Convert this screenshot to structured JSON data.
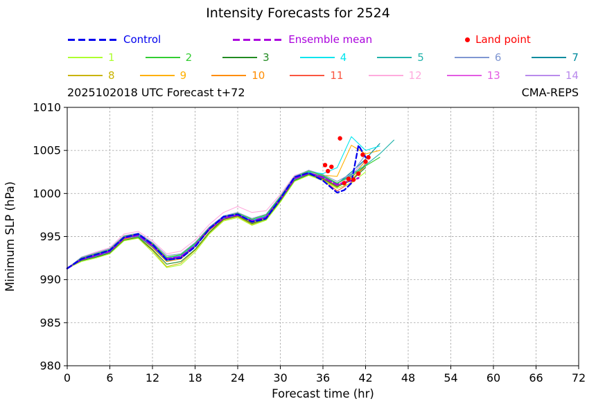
{
  "title": "Intensity Forecasts for 2524",
  "annotation_left": "2025102018 UTC Forecast t+72",
  "annotation_right": "CMA-REPS",
  "legend": {
    "row1": [
      {
        "label": "Control",
        "color": "#0000ee",
        "style": "dashed"
      },
      {
        "label": "Ensemble mean",
        "color": "#aa00dd",
        "style": "dashed"
      },
      {
        "label": "Land point",
        "color": "#ff0000",
        "style": "dot"
      }
    ]
  },
  "chart_data": {
    "type": "line",
    "title": "Intensity Forecasts for 2524",
    "xlabel": "Forecast time (hr)",
    "ylabel": "Minimum SLP (hPa)",
    "xlim": [
      0,
      72
    ],
    "ylim": [
      980,
      1010
    ],
    "xticks": [
      0,
      6,
      12,
      18,
      24,
      30,
      36,
      42,
      48,
      54,
      60,
      66,
      72
    ],
    "yticks": [
      980,
      985,
      990,
      995,
      1000,
      1005,
      1010
    ],
    "grid": true,
    "grid_color": "#aaaaaa",
    "series": [
      {
        "name": "Control",
        "color": "#0000ee",
        "dash": [
          7,
          4
        ],
        "width": 2.3,
        "x": [
          0,
          2,
          4,
          6,
          8,
          10,
          12,
          14,
          16,
          18,
          20,
          22,
          24,
          26,
          28,
          30,
          32,
          34,
          36,
          38,
          39,
          40,
          41,
          42
        ],
        "y": [
          991.3,
          992.4,
          992.9,
          993.4,
          994.9,
          995.3,
          994.1,
          992.3,
          992.5,
          993.8,
          995.9,
          997.3,
          997.6,
          996.7,
          997.1,
          999.4,
          1001.9,
          1002.4,
          1001.5,
          1000.1,
          1000.4,
          1001.2,
          1005.6,
          1004.2
        ]
      },
      {
        "name": "Ensemble mean",
        "color": "#aa00dd",
        "dash": [
          8,
          4
        ],
        "width": 2.6,
        "x": [
          0,
          2,
          4,
          6,
          8,
          10,
          12,
          14,
          16,
          18,
          20,
          22,
          24,
          26,
          28,
          30,
          32,
          34,
          36,
          38,
          40,
          41
        ],
        "y": [
          991.3,
          992.35,
          992.8,
          993.3,
          994.85,
          995.15,
          993.95,
          992.4,
          992.65,
          993.95,
          995.85,
          997.15,
          997.5,
          996.8,
          997.25,
          999.35,
          1001.75,
          1002.35,
          1001.85,
          1001.0,
          1001.5,
          1001.8
        ]
      },
      {
        "name": "1",
        "color": "#adff2f",
        "width": 1.1,
        "x": [
          0,
          2,
          4,
          6,
          8,
          10,
          12,
          14,
          16,
          18,
          20,
          22,
          24,
          26,
          28,
          30,
          32,
          34,
          36,
          38,
          40,
          42
        ],
        "y": [
          991.3,
          992.1,
          992.5,
          993.0,
          994.5,
          994.8,
          993.2,
          991.4,
          991.7,
          993.2,
          995.3,
          996.8,
          997.2,
          996.3,
          996.9,
          999.0,
          1001.4,
          1002.1,
          1001.5,
          1000.6,
          1001.2,
          1002.5
        ]
      },
      {
        "name": "2",
        "color": "#32cd32",
        "width": 1.1,
        "x": [
          0,
          2,
          4,
          6,
          8,
          10,
          12,
          14,
          16,
          18,
          20,
          22,
          24,
          26,
          28,
          30,
          32,
          34,
          36,
          38,
          40,
          42,
          44
        ],
        "y": [
          991.3,
          992.5,
          993.0,
          993.5,
          995.0,
          995.3,
          994.2,
          992.6,
          992.9,
          994.2,
          996.0,
          997.3,
          997.7,
          997.0,
          997.5,
          999.6,
          1001.9,
          1002.6,
          1002.1,
          1001.2,
          1002.0,
          1003.2,
          1004.2
        ]
      },
      {
        "name": "3",
        "color": "#228b22",
        "width": 1.1,
        "x": [
          0,
          2,
          4,
          6,
          8,
          10,
          12,
          14,
          16,
          18,
          20,
          22,
          24,
          26,
          28,
          30,
          32,
          34,
          36,
          38,
          40,
          42
        ],
        "y": [
          991.3,
          992.2,
          992.6,
          993.1,
          994.6,
          994.9,
          993.5,
          991.8,
          992.1,
          993.5,
          995.5,
          997.0,
          997.4,
          996.5,
          997.0,
          999.1,
          1001.5,
          1002.2,
          1001.7,
          1000.8,
          1001.5,
          1003.0
        ]
      },
      {
        "name": "4",
        "color": "#00e5ee",
        "width": 1.1,
        "x": [
          0,
          2,
          4,
          6,
          8,
          10,
          12,
          14,
          16,
          18,
          20,
          22,
          24,
          26,
          28,
          30,
          32,
          34,
          36,
          38,
          40,
          42,
          44
        ],
        "y": [
          991.3,
          992.4,
          992.9,
          993.4,
          995.0,
          995.2,
          994.0,
          992.5,
          992.8,
          994.1,
          996.0,
          997.2,
          997.6,
          996.9,
          997.4,
          999.5,
          1001.8,
          1002.5,
          1002.3,
          1003.0,
          1006.6,
          1005.0,
          1005.5
        ]
      },
      {
        "name": "5",
        "color": "#20b2aa",
        "width": 1.1,
        "x": [
          0,
          2,
          4,
          6,
          8,
          10,
          12,
          14,
          16,
          18,
          20,
          22,
          24,
          26,
          28,
          30,
          32,
          34,
          36,
          38,
          40,
          42,
          44,
          46
        ],
        "y": [
          991.3,
          992.3,
          992.7,
          993.2,
          994.8,
          995.0,
          993.8,
          992.2,
          992.5,
          993.9,
          995.8,
          997.1,
          997.5,
          996.7,
          997.2,
          999.3,
          1001.6,
          1002.3,
          1001.9,
          1001.2,
          1002.2,
          1003.3,
          1004.6,
          1006.2
        ]
      },
      {
        "name": "6",
        "color": "#7f96d2",
        "width": 1.1,
        "x": [
          0,
          2,
          4,
          6,
          8,
          10,
          12,
          14,
          16,
          18,
          20,
          22,
          24,
          26,
          28,
          30,
          32,
          34,
          36,
          38,
          40,
          42
        ],
        "y": [
          991.3,
          992.6,
          993.1,
          993.6,
          995.1,
          995.4,
          994.3,
          992.8,
          993.0,
          994.3,
          996.1,
          997.4,
          997.8,
          997.1,
          997.6,
          999.7,
          1002.0,
          1002.7,
          1002.2,
          1001.4,
          1002.3,
          1004.5
        ]
      },
      {
        "name": "7",
        "color": "#008b9e",
        "width": 1.1,
        "x": [
          0,
          2,
          4,
          6,
          8,
          10,
          12,
          14,
          16,
          18,
          20,
          22,
          24,
          26,
          28,
          30,
          32,
          34,
          36,
          38,
          40,
          42,
          44
        ],
        "y": [
          991.3,
          992.4,
          992.8,
          993.3,
          994.9,
          995.1,
          993.9,
          992.3,
          992.6,
          994.0,
          995.9,
          997.2,
          997.6,
          996.8,
          997.3,
          999.4,
          1001.7,
          1002.4,
          1002.0,
          1001.1,
          1002.5,
          1004.0,
          1005.8
        ]
      },
      {
        "name": "8",
        "color": "#c9b400",
        "width": 1.1,
        "x": [
          0,
          2,
          4,
          6,
          8,
          10,
          12,
          14,
          16,
          18,
          20,
          22,
          24,
          26,
          28,
          30,
          32,
          34,
          36,
          38,
          40,
          42
        ],
        "y": [
          991.3,
          992.2,
          992.6,
          993.0,
          994.6,
          994.8,
          993.4,
          991.5,
          991.9,
          993.4,
          995.4,
          996.9,
          997.3,
          996.4,
          996.9,
          999.0,
          1001.5,
          1002.2,
          1001.6,
          1000.7,
          1001.8,
          1003.8
        ]
      },
      {
        "name": "9",
        "color": "#ffb000",
        "width": 1.1,
        "x": [
          0,
          2,
          4,
          6,
          8,
          10,
          12,
          14,
          16,
          18,
          20,
          22,
          24,
          26,
          28,
          30,
          32,
          34,
          36,
          38,
          40,
          42,
          44
        ],
        "y": [
          991.3,
          992.5,
          993.0,
          993.5,
          995.1,
          995.3,
          994.1,
          992.6,
          992.9,
          994.2,
          996.1,
          997.3,
          997.7,
          997.0,
          997.5,
          999.6,
          1001.9,
          1002.6,
          1002.1,
          1002.0,
          1005.6,
          1004.6,
          1005.0
        ]
      },
      {
        "name": "10",
        "color": "#ff8c00",
        "width": 1.1,
        "x": [
          0,
          2,
          4,
          6,
          8,
          10,
          12,
          14,
          16,
          18,
          20,
          22,
          24,
          26,
          28,
          30,
          32,
          34,
          36,
          38,
          40,
          42
        ],
        "y": [
          991.3,
          992.3,
          992.7,
          993.2,
          994.7,
          995.0,
          993.7,
          992.1,
          992.4,
          993.8,
          995.7,
          997.0,
          997.4,
          996.6,
          997.1,
          999.2,
          1001.6,
          1002.3,
          1001.8,
          1000.9,
          1001.6,
          1003.2
        ]
      },
      {
        "name": "11",
        "color": "#fa5540",
        "width": 1.1,
        "x": [
          0,
          2,
          4,
          6,
          8,
          10,
          12,
          14,
          16,
          18,
          20,
          22,
          24,
          26,
          28,
          30,
          32,
          34,
          36,
          38,
          40,
          42
        ],
        "y": [
          991.3,
          992.4,
          992.9,
          993.3,
          994.9,
          995.2,
          994.0,
          992.4,
          992.7,
          994.0,
          995.9,
          997.2,
          997.5,
          996.8,
          997.2,
          999.3,
          1001.7,
          1002.4,
          1001.6,
          1000.3,
          1001.3,
          1003.5
        ]
      },
      {
        "name": "12",
        "color": "#ffaadd",
        "width": 1.1,
        "x": [
          0,
          2,
          4,
          6,
          8,
          10,
          12,
          14,
          16,
          18,
          20,
          22,
          24,
          26,
          28,
          30,
          32,
          34,
          36,
          38,
          40,
          42
        ],
        "y": [
          991.3,
          992.6,
          993.2,
          993.7,
          995.3,
          995.6,
          994.5,
          993.0,
          993.3,
          994.6,
          996.4,
          997.8,
          998.5,
          997.8,
          998.0,
          999.9,
          1002.1,
          1002.6,
          1002.0,
          1001.1,
          1001.9,
          1003.0
        ]
      },
      {
        "name": "13",
        "color": "#e35ce3",
        "width": 1.1,
        "x": [
          0,
          2,
          4,
          6,
          8,
          10,
          12,
          14,
          16,
          18,
          20,
          22,
          24,
          26,
          28,
          30,
          32,
          34,
          36,
          38,
          40
        ],
        "y": [
          991.3,
          992.3,
          992.8,
          993.3,
          994.8,
          995.1,
          993.9,
          992.3,
          992.6,
          994.0,
          995.8,
          997.1,
          997.5,
          996.7,
          997.2,
          999.3,
          1001.7,
          1002.3,
          1001.8,
          1000.9,
          1002.0
        ]
      },
      {
        "name": "14",
        "color": "#b98aec",
        "width": 1.1,
        "x": [
          0,
          2,
          4,
          6,
          8,
          10,
          12,
          14,
          16,
          18,
          20,
          22,
          24,
          26,
          28,
          30,
          32,
          34,
          36,
          38,
          40,
          42
        ],
        "y": [
          991.3,
          992.5,
          993.0,
          993.4,
          995.0,
          995.2,
          994.1,
          992.5,
          992.8,
          994.1,
          996.0,
          997.2,
          997.6,
          996.9,
          997.4,
          999.5,
          1001.8,
          1002.5,
          1002.0,
          1001.2,
          1002.1,
          1004.0
        ]
      }
    ],
    "scatter": {
      "name": "Land point",
      "color": "#ff0000",
      "points": [
        [
          36.3,
          1003.3
        ],
        [
          36.7,
          1002.6
        ],
        [
          37.2,
          1003.1
        ],
        [
          38.4,
          1006.4
        ],
        [
          39.0,
          1001.2
        ],
        [
          39.6,
          1001.7
        ],
        [
          40.3,
          1001.6
        ],
        [
          41.0,
          1002.3
        ],
        [
          41.6,
          1004.5
        ],
        [
          42.0,
          1003.7
        ],
        [
          42.4,
          1004.2
        ]
      ]
    }
  }
}
